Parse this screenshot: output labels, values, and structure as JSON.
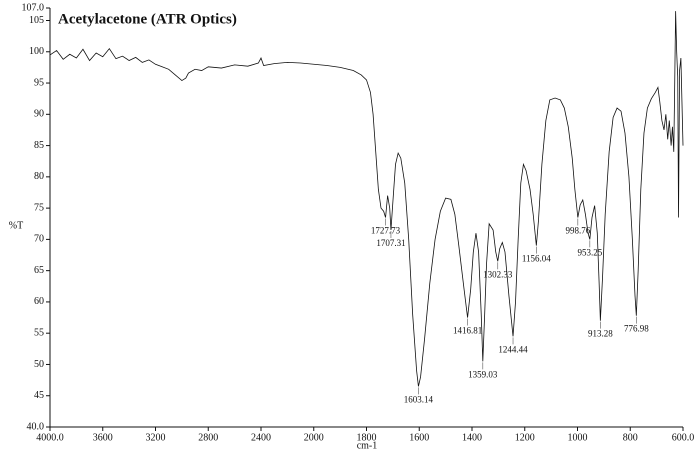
{
  "chart_data": {
    "type": "line",
    "title": "Acetylacetone (ATR Optics)",
    "y_label": "%T",
    "x_label": "cm-1",
    "color": "#111111",
    "xlim": [
      4000,
      600
    ],
    "ylim": [
      40,
      107
    ],
    "xticks": [
      {
        "value": 4000,
        "label": "4000.0"
      },
      3600,
      3200,
      2800,
      2400,
      2000,
      1800,
      1600,
      1400,
      1200,
      1000,
      800,
      {
        "value": 600,
        "label": "600.0"
      }
    ],
    "yticks": [
      {
        "value": 40,
        "label": "40.0"
      },
      45,
      50,
      55,
      60,
      65,
      70,
      75,
      80,
      85,
      90,
      95,
      100,
      105,
      {
        "value": 107,
        "label": "107.0"
      }
    ],
    "x": [
      4000,
      3950,
      3900,
      3850,
      3800,
      3750,
      3700,
      3650,
      3600,
      3550,
      3500,
      3450,
      3400,
      3350,
      3300,
      3250,
      3200,
      3150,
      3100,
      3050,
      3000,
      2970,
      2950,
      2900,
      2850,
      2800,
      2700,
      2600,
      2500,
      2420,
      2400,
      2380,
      2300,
      2200,
      2100,
      2000,
      1950,
      1900,
      1850,
      1820,
      1800,
      1785,
      1775,
      1765,
      1755,
      1745,
      1735,
      1727.73,
      1720,
      1712,
      1707.31,
      1700,
      1690,
      1680,
      1670,
      1655,
      1640,
      1625,
      1610,
      1603.14,
      1595,
      1580,
      1560,
      1540,
      1520,
      1500,
      1480,
      1465,
      1450,
      1430,
      1416.81,
      1405,
      1395,
      1385,
      1375,
      1365,
      1359.03,
      1352,
      1345,
      1335,
      1320,
      1310,
      1302.33,
      1295,
      1285,
      1275,
      1260,
      1244.44,
      1235,
      1225,
      1215,
      1205,
      1195,
      1180,
      1168,
      1156.04,
      1148,
      1135,
      1120,
      1105,
      1085,
      1065,
      1050,
      1035,
      1020,
      1010,
      998.76,
      990,
      980,
      970,
      960,
      953.25,
      945,
      935,
      925,
      918,
      913.28,
      905,
      895,
      880,
      865,
      850,
      835,
      820,
      805,
      792,
      782,
      776.98,
      770,
      760,
      748,
      735,
      720,
      705,
      695,
      688,
      680,
      672,
      665,
      658,
      652,
      645,
      640,
      635,
      632,
      628,
      624,
      620,
      617,
      613,
      608,
      604,
      600
    ],
    "values": [
      99.5,
      100.2,
      98.8,
      99.6,
      99.0,
      100.4,
      98.6,
      99.8,
      99.2,
      100.5,
      98.9,
      99.3,
      98.6,
      99.1,
      98.3,
      98.7,
      98.0,
      97.6,
      97.2,
      96.3,
      95.4,
      95.8,
      96.6,
      97.2,
      97.0,
      97.6,
      97.4,
      97.9,
      97.7,
      98.2,
      99.0,
      97.8,
      98.1,
      98.3,
      98.2,
      98.0,
      97.8,
      97.5,
      97.0,
      96.3,
      95.5,
      93.5,
      90,
      84,
      78,
      75,
      74.5,
      73.5,
      77,
      75,
      71.5,
      76,
      82,
      83.8,
      83,
      79,
      70,
      58,
      49,
      46.5,
      48,
      54,
      63,
      70,
      74.5,
      76.6,
      76.4,
      74,
      69,
      62,
      57.5,
      62,
      68,
      71,
      68,
      58,
      50.5,
      58,
      66,
      72.5,
      71.5,
      68,
      66.5,
      68.5,
      69.5,
      68,
      61,
      54.5,
      60,
      70,
      79,
      82,
      81,
      78,
      74,
      69,
      73,
      82,
      89,
      92.3,
      92.6,
      92.3,
      91,
      88,
      83,
      78,
      73.5,
      75.5,
      76.3,
      74,
      71,
      70,
      73.5,
      75.4,
      71,
      63,
      57,
      64,
      74,
      84,
      89.5,
      91,
      90.5,
      87,
      80,
      70,
      61,
      57.8,
      65,
      78,
      87,
      91,
      92.5,
      93.5,
      94.3,
      92,
      89,
      87.5,
      90,
      86,
      89,
      85,
      88,
      84,
      93,
      106.5,
      100,
      96,
      73.5,
      97,
      99,
      92,
      85
    ],
    "peak_labels": [
      1727.73,
      1707.31,
      1603.14,
      1416.81,
      1359.03,
      1302.33,
      1244.44,
      1156.04,
      998.76,
      953.25,
      913.28,
      776.98
    ]
  }
}
